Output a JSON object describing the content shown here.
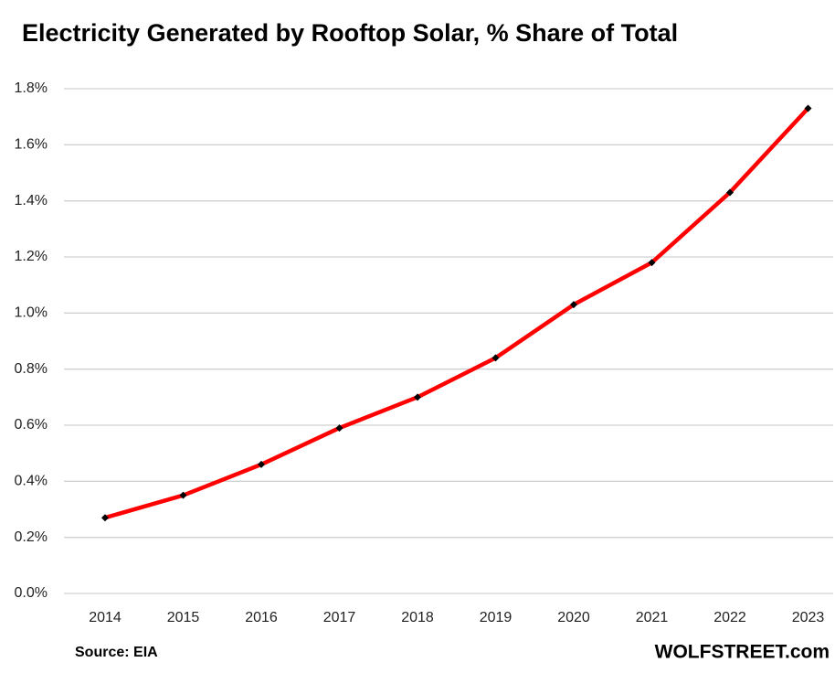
{
  "chart_data": {
    "type": "line",
    "title": "Electricity Generated by Rooftop Solar, % Share of Total",
    "categories": [
      "2014",
      "2015",
      "2016",
      "2017",
      "2018",
      "2019",
      "2020",
      "2021",
      "2022",
      "2023"
    ],
    "values": [
      0.27,
      0.35,
      0.46,
      0.59,
      0.7,
      0.84,
      1.03,
      1.18,
      1.43,
      1.73
    ],
    "color": "#ff0000",
    "marker_color": "#000000",
    "ylim": [
      0,
      1.8
    ],
    "yticks": [
      {
        "value": 0,
        "label": "0.0%"
      },
      {
        "value": 0.2,
        "label": "0.2%"
      },
      {
        "value": 0.4,
        "label": "0.4%"
      },
      {
        "value": 0.6,
        "label": "0.6%"
      },
      {
        "value": 0.8,
        "label": "0.8%"
      },
      {
        "value": 1.0,
        "label": "1.0%"
      },
      {
        "value": 1.2,
        "label": "1.2%"
      },
      {
        "value": 1.4,
        "label": "1.4%"
      },
      {
        "value": 1.6,
        "label": "1.6%"
      },
      {
        "value": 1.8,
        "label": "1.8%"
      }
    ],
    "grid": true,
    "source": "Source: EIA",
    "credit": "WOLFSTREET.com"
  }
}
